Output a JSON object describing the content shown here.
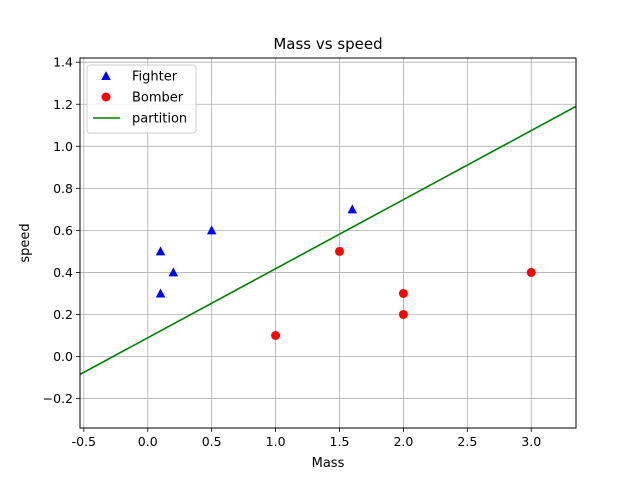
{
  "chart_data": {
    "type": "scatter",
    "title": "Mass vs speed",
    "xlabel": "Mass",
    "ylabel": "speed",
    "xlim": [
      -0.53,
      3.35
    ],
    "ylim": [
      -0.34,
      1.42
    ],
    "xticks": [
      "-0.5",
      "0.0",
      "0.5",
      "1.0",
      "1.5",
      "2.0",
      "2.5",
      "3.0"
    ],
    "xtick_values": [
      -0.5,
      0.0,
      0.5,
      1.0,
      1.5,
      2.0,
      2.5,
      3.0
    ],
    "yticks": [
      "−0.2",
      "0.0",
      "0.2",
      "0.4",
      "0.6",
      "0.8",
      "1.0",
      "1.2",
      "1.4"
    ],
    "ytick_values": [
      -0.2,
      0.0,
      0.2,
      0.4,
      0.6,
      0.8,
      1.0,
      1.2,
      1.4
    ],
    "grid": true,
    "legend_position": "top-left",
    "series": [
      {
        "name": "Fighter",
        "marker": "triangle",
        "color": "#0000ff",
        "x": [
          0.1,
          0.1,
          0.2,
          0.5,
          1.6
        ],
        "y": [
          0.3,
          0.5,
          0.4,
          0.6,
          0.7
        ]
      },
      {
        "name": "Bomber",
        "marker": "circle",
        "color": "#ff0000",
        "x": [
          1.0,
          1.5,
          2.0,
          2.0,
          3.0
        ],
        "y": [
          0.1,
          0.5,
          0.3,
          0.2,
          0.4
        ]
      }
    ],
    "lines": [
      {
        "name": "partition",
        "color": "#008000",
        "x": [
          -0.53,
          3.35
        ],
        "y": [
          -0.085,
          1.19
        ]
      }
    ]
  }
}
